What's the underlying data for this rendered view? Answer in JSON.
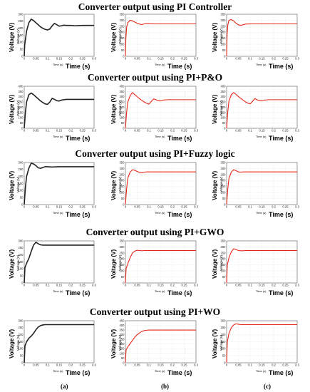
{
  "rows": [
    {
      "title": "Converter output using PI Controller"
    },
    {
      "title": "Converter output using PI+P&O"
    },
    {
      "title": "Converter output using PI+Fuzzy logic"
    },
    {
      "title": "Converter output using PI+GWO"
    },
    {
      "title": "Converter output using PI+WO"
    }
  ],
  "columns": [
    {
      "label": "(a)"
    },
    {
      "label": "(b)"
    },
    {
      "label": "(c)"
    }
  ],
  "axis_text": {
    "xlabel_big": "Time (s)",
    "ylabel_big": "Voltage (V)",
    "xlabel_small": "Time (s)",
    "ylabel_small": "Voltage (V)"
  },
  "colors": {
    "col_a": "#222222",
    "col_b": "#e8261a",
    "col_c": "#e8261a",
    "gridline": "#cccccc"
  },
  "chart_data": [
    {
      "row": 0,
      "col": 0,
      "type": "line",
      "xlim": [
        0,
        0.3
      ],
      "ylim": [
        0,
        300
      ],
      "xticks": [
        "0",
        "0.05",
        "0.1",
        "0.15",
        "0.2",
        "0.25",
        "0.3"
      ],
      "yticks": [
        "0",
        "50",
        "100",
        "150",
        "200",
        "250",
        "300"
      ],
      "x": [
        0,
        0.002,
        0.01,
        0.02,
        0.03,
        0.04,
        0.05,
        0.06,
        0.07,
        0.08,
        0.09,
        0.1,
        0.11,
        0.12,
        0.13,
        0.14,
        0.15,
        0.16,
        0.17,
        0.18,
        0.2,
        0.22,
        0.25,
        0.3
      ],
      "y": [
        0,
        80,
        180,
        240,
        265,
        255,
        240,
        225,
        210,
        200,
        192,
        188,
        195,
        218,
        235,
        225,
        215,
        218,
        222,
        220,
        220,
        218,
        220,
        220
      ]
    },
    {
      "row": 0,
      "col": 1,
      "type": "line",
      "xlim": [
        0,
        0.3
      ],
      "ylim": [
        0,
        350
      ],
      "xticks": [
        "0",
        "0.05",
        "0.1",
        "0.15",
        "0.2",
        "0.25",
        "0.3"
      ],
      "yticks": [
        "0",
        "50",
        "100",
        "150",
        "200",
        "250",
        "300",
        "350"
      ],
      "x": [
        0,
        0.002,
        0.005,
        0.01,
        0.02,
        0.03,
        0.04,
        0.05,
        0.06,
        0.07,
        0.08,
        0.09,
        0.1,
        0.12,
        0.15,
        0.2,
        0.25,
        0.3
      ],
      "y": [
        0,
        150,
        240,
        280,
        300,
        295,
        285,
        275,
        268,
        264,
        270,
        275,
        272,
        270,
        270,
        270,
        270,
        270
      ]
    },
    {
      "row": 0,
      "col": 2,
      "type": "line",
      "xlim": [
        0,
        0.3
      ],
      "ylim": [
        0,
        350
      ],
      "xticks": [
        "0",
        "0.05",
        "0.1",
        "0.15",
        "0.2",
        "0.25",
        "0.3"
      ],
      "yticks": [
        "0",
        "50",
        "100",
        "150",
        "200",
        "250",
        "300",
        "350"
      ],
      "x": [
        0,
        0.002,
        0.005,
        0.01,
        0.02,
        0.03,
        0.04,
        0.05,
        0.06,
        0.07,
        0.08,
        0.1,
        0.15,
        0.2,
        0.25,
        0.3
      ],
      "y": [
        0,
        180,
        260,
        300,
        305,
        295,
        275,
        262,
        258,
        262,
        268,
        270,
        270,
        270,
        270,
        270
      ]
    },
    {
      "row": 1,
      "col": 0,
      "type": "line",
      "xlim": [
        0,
        0.3
      ],
      "ylim": [
        0,
        400
      ],
      "xticks": [
        "0",
        "0.05",
        "0.1",
        "0.15",
        "0.2",
        "0.25",
        "0.3"
      ],
      "yticks": [
        "0",
        "50",
        "100",
        "150",
        "200",
        "250",
        "300",
        "350",
        "400"
      ],
      "x": [
        0,
        0.005,
        0.01,
        0.02,
        0.03,
        0.04,
        0.05,
        0.06,
        0.07,
        0.08,
        0.09,
        0.1,
        0.11,
        0.12,
        0.13,
        0.14,
        0.15,
        0.16,
        0.18,
        0.2,
        0.25,
        0.3
      ],
      "y": [
        0,
        150,
        250,
        320,
        335,
        320,
        300,
        280,
        260,
        245,
        232,
        228,
        250,
        285,
        275,
        262,
        260,
        268,
        275,
        275,
        275,
        275
      ]
    },
    {
      "row": 1,
      "col": 1,
      "type": "line",
      "xlim": [
        0,
        0.3
      ],
      "ylim": [
        0,
        400
      ],
      "xticks": [
        "0",
        "0.05",
        "0.1",
        "0.15",
        "0.2",
        "0.25",
        "0.3"
      ],
      "yticks": [
        "0",
        "50",
        "100",
        "150",
        "200",
        "250",
        "300",
        "350",
        "400"
      ],
      "x": [
        0,
        0.005,
        0.01,
        0.02,
        0.03,
        0.04,
        0.05,
        0.06,
        0.07,
        0.08,
        0.09,
        0.1,
        0.11,
        0.12,
        0.13,
        0.14,
        0.15,
        0.16,
        0.18,
        0.2,
        0.25,
        0.3
      ],
      "y": [
        0,
        150,
        250,
        310,
        340,
        320,
        300,
        282,
        265,
        250,
        238,
        230,
        255,
        280,
        272,
        262,
        260,
        268,
        272,
        272,
        272,
        272
      ]
    },
    {
      "row": 1,
      "col": 2,
      "type": "line",
      "xlim": [
        0,
        0.3
      ],
      "ylim": [
        0,
        400
      ],
      "xticks": [
        "0",
        "0.05",
        "0.1",
        "0.15",
        "0.2",
        "0.25",
        "0.3"
      ],
      "yticks": [
        "0",
        "50",
        "100",
        "150",
        "200",
        "250",
        "300",
        "350",
        "400"
      ],
      "x": [
        0,
        0.005,
        0.01,
        0.02,
        0.03,
        0.04,
        0.05,
        0.06,
        0.07,
        0.08,
        0.09,
        0.1,
        0.11,
        0.12,
        0.13,
        0.14,
        0.15,
        0.16,
        0.18,
        0.2,
        0.25,
        0.3
      ],
      "y": [
        0,
        160,
        260,
        320,
        340,
        322,
        302,
        285,
        268,
        252,
        240,
        232,
        256,
        282,
        270,
        262,
        262,
        268,
        272,
        272,
        272,
        272
      ]
    },
    {
      "row": 2,
      "col": 0,
      "type": "line",
      "xlim": [
        0,
        0.3
      ],
      "ylim": [
        0,
        300
      ],
      "xticks": [
        "0",
        "0.05",
        "0.1",
        "0.15",
        "0.2",
        "0.25",
        "0.3"
      ],
      "yticks": [
        "0",
        "50",
        "100",
        "150",
        "200",
        "250",
        "300"
      ],
      "x": [
        0,
        0.005,
        0.01,
        0.02,
        0.03,
        0.04,
        0.05,
        0.06,
        0.07,
        0.08,
        0.09,
        0.1,
        0.12,
        0.15,
        0.2,
        0.25,
        0.3
      ],
      "y": [
        0,
        120,
        200,
        260,
        295,
        290,
        278,
        262,
        258,
        265,
        270,
        270,
        268,
        270,
        270,
        270,
        270
      ]
    },
    {
      "row": 2,
      "col": 1,
      "type": "line",
      "xlim": [
        0,
        0.3
      ],
      "ylim": [
        0,
        350
      ],
      "xticks": [
        "0",
        "0.05",
        "0.1",
        "0.15",
        "0.2",
        "0.25",
        "0.3"
      ],
      "yticks": [
        "0",
        "50",
        "100",
        "150",
        "200",
        "250",
        "300",
        "350"
      ],
      "x": [
        0,
        0.005,
        0.01,
        0.02,
        0.03,
        0.04,
        0.05,
        0.06,
        0.07,
        0.08,
        0.09,
        0.1,
        0.12,
        0.15,
        0.2,
        0.25,
        0.3
      ],
      "y": [
        0,
        130,
        220,
        270,
        290,
        285,
        275,
        268,
        265,
        270,
        272,
        272,
        272,
        272,
        272,
        272,
        272
      ]
    },
    {
      "row": 2,
      "col": 2,
      "type": "line",
      "xlim": [
        0,
        0.3
      ],
      "ylim": [
        0,
        350
      ],
      "xticks": [
        "0",
        "0.05",
        "0.1",
        "0.15",
        "0.2",
        "0.25",
        "0.3"
      ],
      "yticks": [
        "0",
        "50",
        "100",
        "150",
        "200",
        "250",
        "300",
        "350"
      ],
      "x": [
        0,
        0.005,
        0.01,
        0.02,
        0.03,
        0.04,
        0.05,
        0.06,
        0.07,
        0.08,
        0.1,
        0.12,
        0.15,
        0.2,
        0.25,
        0.3
      ],
      "y": [
        0,
        130,
        220,
        270,
        290,
        282,
        272,
        270,
        272,
        272,
        272,
        272,
        272,
        272,
        272,
        272
      ]
    },
    {
      "row": 3,
      "col": 0,
      "type": "line",
      "xlim": [
        0,
        0.3
      ],
      "ylim": [
        0,
        300
      ],
      "xticks": [
        "0",
        "0.05",
        "0.1",
        "0.15",
        "0.2",
        "0.25",
        "0.3"
      ],
      "yticks": [
        "0",
        "50",
        "100",
        "150",
        "200",
        "250",
        "300"
      ],
      "x": [
        0,
        0.003,
        0.01,
        0.02,
        0.03,
        0.04,
        0.05,
        0.06,
        0.07,
        0.08,
        0.1,
        0.12,
        0.15,
        0.2,
        0.25,
        0.3
      ],
      "y": [
        0,
        110,
        140,
        175,
        225,
        270,
        290,
        280,
        272,
        270,
        270,
        270,
        270,
        270,
        270,
        270
      ]
    },
    {
      "row": 3,
      "col": 1,
      "type": "line",
      "xlim": [
        0,
        0.3
      ],
      "ylim": [
        0,
        350
      ],
      "xticks": [
        "0",
        "0.05",
        "0.1",
        "0.15",
        "0.2",
        "0.25",
        "0.3"
      ],
      "yticks": [
        "0",
        "50",
        "100",
        "150",
        "200",
        "250",
        "300",
        "350"
      ],
      "x": [
        0,
        0.003,
        0.01,
        0.02,
        0.03,
        0.04,
        0.05,
        0.06,
        0.07,
        0.08,
        0.1,
        0.12,
        0.15,
        0.2,
        0.25,
        0.3
      ],
      "y": [
        0,
        120,
        160,
        210,
        250,
        265,
        272,
        270,
        268,
        270,
        270,
        270,
        270,
        270,
        270,
        270
      ]
    },
    {
      "row": 3,
      "col": 2,
      "type": "line",
      "xlim": [
        0,
        0.3
      ],
      "ylim": [
        0,
        350
      ],
      "xticks": [
        "0",
        "0.05",
        "0.1",
        "0.15",
        "0.2",
        "0.25",
        "0.3"
      ],
      "yticks": [
        "0",
        "50",
        "100",
        "150",
        "200",
        "250",
        "300",
        "350"
      ],
      "x": [
        0,
        0.003,
        0.01,
        0.02,
        0.03,
        0.04,
        0.05,
        0.06,
        0.07,
        0.08,
        0.1,
        0.12,
        0.15,
        0.2,
        0.25,
        0.3
      ],
      "y": [
        0,
        150,
        210,
        260,
        285,
        278,
        270,
        268,
        268,
        270,
        270,
        270,
        270,
        270,
        270,
        270
      ]
    },
    {
      "row": 4,
      "col": 0,
      "type": "line",
      "xlim": [
        0,
        0.3
      ],
      "ylim": [
        0,
        300
      ],
      "xticks": [
        "0",
        "0.05",
        "0.1",
        "0.15",
        "0.2",
        "0.25",
        "0.3"
      ],
      "yticks": [
        "0",
        "50",
        "100",
        "150",
        "200",
        "250",
        "300"
      ],
      "x": [
        0,
        0.003,
        0.01,
        0.02,
        0.03,
        0.04,
        0.05,
        0.06,
        0.07,
        0.08,
        0.09,
        0.1,
        0.12,
        0.15,
        0.2,
        0.25,
        0.3
      ],
      "y": [
        0,
        120,
        150,
        175,
        190,
        210,
        235,
        255,
        265,
        270,
        272,
        272,
        272,
        272,
        272,
        272,
        272
      ]
    },
    {
      "row": 4,
      "col": 1,
      "type": "line",
      "xlim": [
        0,
        0.3
      ],
      "ylim": [
        0,
        450
      ],
      "xticks": [
        "0",
        "0.05",
        "0.1",
        "0.15",
        "0.2",
        "0.25",
        "0.3"
      ],
      "yticks": [
        "0",
        "50",
        "100",
        "150",
        "200",
        "250",
        "300",
        "350",
        "400",
        "450"
      ],
      "x": [
        0,
        0.003,
        0.01,
        0.02,
        0.03,
        0.04,
        0.05,
        0.06,
        0.07,
        0.08,
        0.09,
        0.1,
        0.12,
        0.15,
        0.2,
        0.25,
        0.3
      ],
      "y": [
        0,
        140,
        170,
        205,
        240,
        275,
        300,
        320,
        335,
        345,
        348,
        350,
        350,
        350,
        350,
        350,
        350
      ]
    },
    {
      "row": 4,
      "col": 2,
      "type": "line",
      "xlim": [
        0,
        0.3
      ],
      "ylim": [
        0,
        300
      ],
      "xticks": [
        "0",
        "0.05",
        "0.1",
        "0.15",
        "0.2",
        "0.25",
        "0.3"
      ],
      "yticks": [
        "0",
        "50",
        "100",
        "150",
        "200",
        "250",
        "300"
      ],
      "x": [
        0,
        0.003,
        0.01,
        0.02,
        0.03,
        0.04,
        0.05,
        0.06,
        0.08,
        0.1,
        0.12,
        0.15,
        0.2,
        0.25,
        0.3
      ],
      "y": [
        0,
        150,
        210,
        250,
        270,
        278,
        275,
        272,
        272,
        272,
        272,
        272,
        272,
        272,
        272
      ]
    }
  ]
}
